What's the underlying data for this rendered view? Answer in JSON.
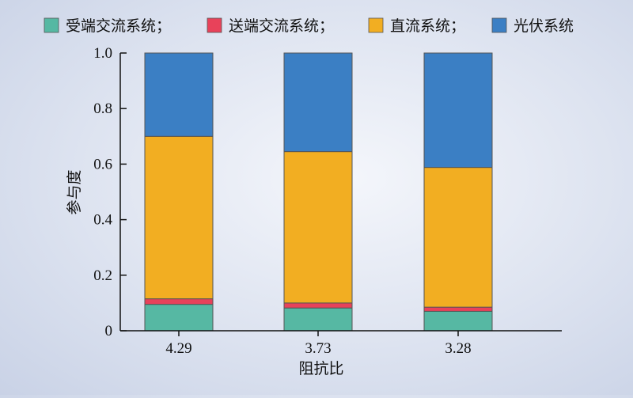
{
  "chart_data": {
    "type": "bar",
    "stacked": true,
    "categories": [
      "4.29",
      "3.73",
      "3.28"
    ],
    "series": [
      {
        "name": "受端交流系统",
        "color": "#56b8a3",
        "values": [
          0.095,
          0.082,
          0.07
        ]
      },
      {
        "name": "送端交流系统",
        "color": "#e8425a",
        "values": [
          0.02,
          0.018,
          0.015
        ]
      },
      {
        "name": "直流系统",
        "color": "#f2ae22",
        "values": [
          0.585,
          0.545,
          0.503
        ]
      },
      {
        "name": "光伏系统",
        "color": "#3b7fc4",
        "values": [
          0.3,
          0.355,
          0.412
        ]
      }
    ],
    "legend_separator": "；",
    "legend_position": "top",
    "xlabel": "阻抗比",
    "ylabel": "参与度",
    "ylim": [
      0,
      1.0
    ],
    "yticks": [
      {
        "value": 0,
        "label": "0"
      },
      {
        "value": 0.2,
        "label": "0.2"
      },
      {
        "value": 0.4,
        "label": "0.4"
      },
      {
        "value": 0.6,
        "label": "0.6"
      },
      {
        "value": 0.8,
        "label": "0.8"
      },
      {
        "value": 1.0,
        "label": "1.0"
      }
    ],
    "grid": false
  }
}
